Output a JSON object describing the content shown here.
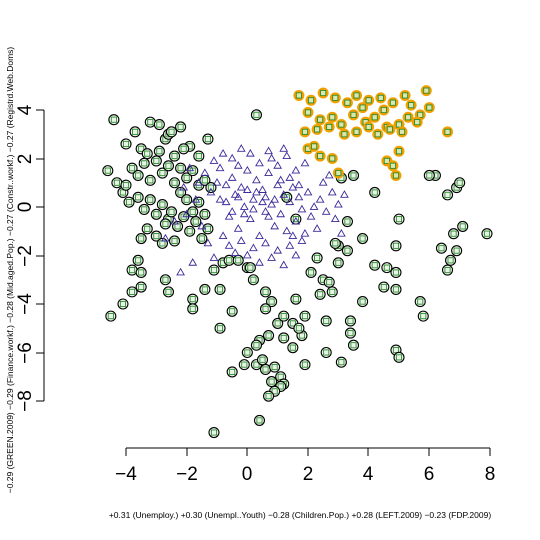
{
  "chart_data": {
    "type": "scatter",
    "xlabel": "+0.31 (Unemploy.) +0.30 (Unempl..Youth) −0.28 (Children.Pop.) +0.28 (LEFT.2009) −0.23 (FDP.2009)",
    "ylabel": "−0.29 (GREEN.2009) −0.29 (Finance.workf.) −0.28 (Mid.aged.Pop.) −0.27 (Constr..workf.) −0.27 (Registrd.Web.Doms)",
    "xlim": [
      -4.8,
      8.3
    ],
    "ylim": [
      -9.7,
      5.5
    ],
    "xticks": [
      "−4",
      "−2",
      "0",
      "2",
      "4",
      "6",
      "8"
    ],
    "xtick_values": [
      -4,
      -2,
      0,
      2,
      4,
      6,
      8
    ],
    "yticks": [
      "−8",
      "−6",
      "−4",
      "−2",
      "0",
      "2",
      "4"
    ],
    "ytick_values": [
      -8,
      -6,
      -4,
      -2,
      0,
      2,
      4
    ],
    "grid": false,
    "legend": "none",
    "colors": {
      "green_outer": "#000000",
      "green_inner": "#2e8b2e",
      "green_fill": "#e8f4e8",
      "blue": "#3a2a9a",
      "orange": "#f0a000"
    },
    "series": [
      {
        "marker": "circle-with-square",
        "values": [
          [
            -4.4,
            3.6
          ],
          [
            -4.0,
            2.6
          ],
          [
            -3.7,
            3.1
          ],
          [
            -3.5,
            2.4
          ],
          [
            -3.2,
            3.5
          ],
          [
            -2.9,
            3.4
          ],
          [
            -2.7,
            2.8
          ],
          [
            -2.6,
            3.0
          ],
          [
            -2.2,
            3.3
          ],
          [
            -2.5,
            3.1
          ],
          [
            -4.6,
            1.5
          ],
          [
            -4.3,
            1.0
          ],
          [
            -4.1,
            0.6
          ],
          [
            -4.0,
            0.9
          ],
          [
            -3.8,
            1.6
          ],
          [
            -3.6,
            1.3
          ],
          [
            -3.4,
            1.8
          ],
          [
            -3.2,
            1.1
          ],
          [
            -3.0,
            1.9
          ],
          [
            -2.8,
            1.4
          ],
          [
            -2.6,
            1.7
          ],
          [
            -2.4,
            1.0
          ],
          [
            -2.2,
            1.6
          ],
          [
            -2.0,
            1.2
          ],
          [
            -1.8,
            1.5
          ],
          [
            -1.6,
            0.9
          ],
          [
            -1.4,
            1.1
          ],
          [
            -1.2,
            0.8
          ],
          [
            -3.9,
            0.2
          ],
          [
            -3.6,
            0.4
          ],
          [
            -3.4,
            -0.1
          ],
          [
            -3.2,
            0.3
          ],
          [
            -3.0,
            -0.3
          ],
          [
            -2.8,
            0.1
          ],
          [
            -2.6,
            -0.5
          ],
          [
            -2.5,
            -0.2
          ],
          [
            -2.3,
            -0.8
          ],
          [
            -2.1,
            -0.4
          ],
          [
            -1.9,
            -1.0
          ],
          [
            -1.7,
            -0.6
          ],
          [
            -1.5,
            -1.3
          ],
          [
            -1.3,
            -0.9
          ],
          [
            -3.3,
            -0.9
          ],
          [
            -3.0,
            -1.2
          ],
          [
            -2.8,
            -1.5
          ],
          [
            -2.7,
            -0.7
          ],
          [
            -2.4,
            -1.4
          ],
          [
            -2.2,
            0.6
          ],
          [
            -2.0,
            0.3
          ],
          [
            -1.8,
            -0.2
          ],
          [
            -1.6,
            0.2
          ],
          [
            -1.4,
            -0.3
          ],
          [
            -3.5,
            -1.3
          ],
          [
            -3.6,
            -2.2
          ],
          [
            -3.5,
            -3.3
          ],
          [
            -3.8,
            -3.5
          ],
          [
            -4.1,
            -4.0
          ],
          [
            -4.5,
            -4.5
          ],
          [
            -3.8,
            -2.6
          ],
          [
            -3.5,
            -2.7
          ],
          [
            -2.7,
            -3.0
          ],
          [
            -2.6,
            -3.5
          ],
          [
            -1.8,
            -3.8
          ],
          [
            -1.8,
            -4.2
          ],
          [
            -1.4,
            -3.4
          ],
          [
            -0.9,
            -3.4
          ],
          [
            -0.9,
            -5.0
          ],
          [
            -0.5,
            -4.3
          ],
          [
            -1.1,
            -2.6
          ],
          [
            -0.8,
            -2.3
          ],
          [
            -0.6,
            -2.2
          ],
          [
            -0.3,
            -2.2
          ],
          [
            0.0,
            -2.5
          ],
          [
            0.2,
            -3.0
          ],
          [
            0.1,
            -2.5
          ],
          [
            0.6,
            -3.5
          ],
          [
            0.8,
            -3.9
          ],
          [
            0.6,
            -4.2
          ],
          [
            1.0,
            -4.8
          ],
          [
            1.2,
            -4.5
          ],
          [
            1.2,
            -5.4
          ],
          [
            0.7,
            -5.3
          ],
          [
            0.4,
            -5.5
          ],
          [
            0.3,
            -5.7
          ],
          [
            0.0,
            -6.0
          ],
          [
            -0.1,
            -6.5
          ],
          [
            0.3,
            -6.5
          ],
          [
            0.6,
            -6.7
          ],
          [
            0.9,
            -6.6
          ],
          [
            0.5,
            -6.3
          ],
          [
            0.8,
            -7.2
          ],
          [
            1.1,
            -7.0
          ],
          [
            1.2,
            -7.3
          ],
          [
            1.1,
            -7.4
          ],
          [
            0.9,
            -7.6
          ],
          [
            0.7,
            -7.8
          ],
          [
            -0.5,
            -6.8
          ],
          [
            0.4,
            -8.8
          ],
          [
            -1.1,
            -9.3
          ],
          [
            1.5,
            -4.8
          ],
          [
            1.6,
            -3.8
          ],
          [
            1.9,
            -4.5
          ],
          [
            1.8,
            -5.3
          ],
          [
            1.9,
            -6.5
          ],
          [
            1.5,
            -5.8
          ],
          [
            1.7,
            -5.0
          ],
          [
            2.5,
            -3.0
          ],
          [
            2.8,
            -3.5
          ],
          [
            2.6,
            -4.7
          ],
          [
            2.1,
            -2.7
          ],
          [
            2.3,
            -2.1
          ],
          [
            3.0,
            -2.3
          ],
          [
            3.4,
            -4.7
          ],
          [
            3.4,
            -5.2
          ],
          [
            3.5,
            -5.7
          ],
          [
            3.1,
            -6.4
          ],
          [
            2.6,
            -6.0
          ],
          [
            2.7,
            -3.1
          ],
          [
            3.8,
            -3.9
          ],
          [
            4.2,
            -2.4
          ],
          [
            4.5,
            -3.3
          ],
          [
            4.6,
            -2.5
          ],
          [
            4.9,
            -2.7
          ],
          [
            4.9,
            -3.4
          ],
          [
            5.7,
            -3.9
          ],
          [
            5.8,
            -4.5
          ],
          [
            4.9,
            -5.9
          ],
          [
            5.0,
            -6.2
          ],
          [
            2.4,
            -3.6
          ],
          [
            3.3,
            -1.8
          ],
          [
            3.8,
            -1.3
          ],
          [
            4.9,
            -1.6
          ],
          [
            5.0,
            -0.5
          ],
          [
            3.0,
            -1.6
          ],
          [
            4.2,
            0.6
          ],
          [
            3.1,
            1.2
          ],
          [
            3.5,
            1.3
          ],
          [
            3.3,
            -0.6
          ],
          [
            6.2,
            1.3
          ],
          [
            6.0,
            1.3
          ],
          [
            6.9,
            0.8
          ],
          [
            7.0,
            1.0
          ],
          [
            6.6,
            0.5
          ],
          [
            7.1,
            -0.8
          ],
          [
            7.9,
            -1.1
          ],
          [
            6.8,
            -1.1
          ],
          [
            6.4,
            -1.7
          ],
          [
            6.9,
            -1.8
          ],
          [
            6.7,
            -2.2
          ],
          [
            6.6,
            -2.6
          ],
          [
            0.3,
            3.8
          ],
          [
            -1.3,
            2.8
          ],
          [
            -1.6,
            2.1
          ],
          [
            -1.9,
            2.5
          ],
          [
            -2.9,
            2.3
          ],
          [
            -3.3,
            2.2
          ],
          [
            -2.4,
            2.1
          ],
          [
            -2.1,
            2.4
          ],
          [
            2.9,
            -1.5
          ],
          [
            1.3,
            0.4
          ],
          [
            1.6,
            -0.5
          ]
        ]
      },
      {
        "marker": "triangle",
        "values": [
          [
            -1.2,
            0.6
          ],
          [
            -1.0,
            1.0
          ],
          [
            -0.9,
            1.6
          ],
          [
            -0.7,
            0.2
          ],
          [
            -0.6,
            -0.4
          ],
          [
            -0.5,
            1.2
          ],
          [
            -0.4,
            0.5
          ],
          [
            -0.3,
            -0.9
          ],
          [
            -0.2,
            0.8
          ],
          [
            -0.1,
            0.0
          ],
          [
            0.0,
            1.5
          ],
          [
            0.1,
            -0.5
          ],
          [
            0.2,
            0.3
          ],
          [
            0.3,
            1.1
          ],
          [
            0.4,
            -1.2
          ],
          [
            0.5,
            0.7
          ],
          [
            0.6,
            -0.2
          ],
          [
            0.7,
            1.4
          ],
          [
            0.8,
            0.1
          ],
          [
            0.9,
            -0.8
          ],
          [
            1.0,
            0.9
          ],
          [
            1.1,
            -0.3
          ],
          [
            1.2,
            0.5
          ],
          [
            1.3,
            -1.0
          ],
          [
            1.4,
            0.2
          ],
          [
            1.5,
            0.8
          ],
          [
            1.6,
            -0.6
          ],
          [
            1.7,
            0.4
          ],
          [
            1.8,
            -0.1
          ],
          [
            1.9,
            -1.1
          ],
          [
            2.0,
            0.6
          ],
          [
            2.1,
            -0.4
          ],
          [
            2.2,
            0.0
          ],
          [
            2.3,
            -0.9
          ],
          [
            2.4,
            0.3
          ],
          [
            2.6,
            -0.2
          ],
          [
            2.8,
            0.6
          ],
          [
            3.0,
            0.1
          ],
          [
            3.2,
            0.5
          ],
          [
            -0.8,
            -1.2
          ],
          [
            -0.6,
            -1.6
          ],
          [
            -0.4,
            -1.9
          ],
          [
            -0.2,
            -1.4
          ],
          [
            0.0,
            -2.0
          ],
          [
            0.2,
            -1.7
          ],
          [
            0.4,
            -2.3
          ],
          [
            0.6,
            -1.5
          ],
          [
            0.8,
            -2.1
          ],
          [
            1.0,
            -1.8
          ],
          [
            1.2,
            -2.4
          ],
          [
            1.4,
            -1.6
          ],
          [
            1.6,
            -2.0
          ],
          [
            1.8,
            -1.4
          ],
          [
            -1.5,
            -0.8
          ],
          [
            -1.3,
            -1.5
          ],
          [
            -1.1,
            -2.1
          ],
          [
            -1.8,
            -2.3
          ],
          [
            -2.2,
            -2.7
          ],
          [
            -2.7,
            -1.3
          ],
          [
            -2.0,
            -0.3
          ],
          [
            -1.7,
            0.3
          ],
          [
            -1.4,
            1.4
          ],
          [
            -1.1,
            1.9
          ],
          [
            -0.8,
            2.2
          ],
          [
            -0.5,
            2.0
          ],
          [
            -0.2,
            2.4
          ],
          [
            0.1,
            2.2
          ],
          [
            0.4,
            1.8
          ],
          [
            0.7,
            2.3
          ],
          [
            1.0,
            1.7
          ],
          [
            1.3,
            2.1
          ],
          [
            1.6,
            1.5
          ],
          [
            1.9,
            1.8
          ],
          [
            -0.3,
            0.4
          ],
          [
            0.2,
            -0.1
          ],
          [
            0.5,
            0.2
          ],
          [
            -0.1,
            -0.3
          ],
          [
            0.3,
            0.6
          ],
          [
            0.6,
            0.4
          ],
          [
            0.9,
            0.3
          ],
          [
            -0.5,
            -0.2
          ],
          [
            0.0,
            0.7
          ],
          [
            0.7,
            -0.4
          ],
          [
            1.1,
            1.1
          ],
          [
            -0.9,
            0.3
          ],
          [
            -0.7,
            0.9
          ],
          [
            -0.3,
            1.7
          ],
          [
            1.4,
            1.2
          ],
          [
            1.7,
            0.9
          ],
          [
            2.5,
            1.0
          ],
          [
            2.7,
            1.3
          ],
          [
            2.9,
            -0.5
          ],
          [
            3.1,
            -1.1
          ],
          [
            1.2,
            2.4
          ],
          [
            -1.6,
            1.0
          ],
          [
            -2.4,
            -0.6
          ],
          [
            -2.1,
            0.8
          ],
          [
            -1.9,
            1.6
          ],
          [
            0.8,
            2.0
          ],
          [
            1.5,
            -1.2
          ]
        ]
      },
      {
        "marker": "orange-circle-with-square",
        "values": [
          [
            1.7,
            4.6
          ],
          [
            2.1,
            4.4
          ],
          [
            2.5,
            4.7
          ],
          [
            2.9,
            4.5
          ],
          [
            3.3,
            4.3
          ],
          [
            3.6,
            4.6
          ],
          [
            4.0,
            4.4
          ],
          [
            4.4,
            4.5
          ],
          [
            4.8,
            4.3
          ],
          [
            5.2,
            4.6
          ],
          [
            5.9,
            4.8
          ],
          [
            6.0,
            4.1
          ],
          [
            5.7,
            3.8
          ],
          [
            2.0,
            3.9
          ],
          [
            2.4,
            3.6
          ],
          [
            2.8,
            3.7
          ],
          [
            3.1,
            3.4
          ],
          [
            3.5,
            3.8
          ],
          [
            3.9,
            3.5
          ],
          [
            4.2,
            3.7
          ],
          [
            4.6,
            3.3
          ],
          [
            5.0,
            3.4
          ],
          [
            5.3,
            3.7
          ],
          [
            5.6,
            3.5
          ],
          [
            1.9,
            3.1
          ],
          [
            2.3,
            3.2
          ],
          [
            2.7,
            3.3
          ],
          [
            3.2,
            3.0
          ],
          [
            3.6,
            3.1
          ],
          [
            4.0,
            3.3
          ],
          [
            4.3,
            3.0
          ],
          [
            4.7,
            3.2
          ],
          [
            5.1,
            3.1
          ],
          [
            6.6,
            3.1
          ],
          [
            2.0,
            2.4
          ],
          [
            2.4,
            2.1
          ],
          [
            2.8,
            2.0
          ],
          [
            3.0,
            1.4
          ],
          [
            4.6,
            1.9
          ],
          [
            5.0,
            2.3
          ],
          [
            4.8,
            1.7
          ],
          [
            4.9,
            1.3
          ],
          [
            2.2,
            2.5
          ],
          [
            3.8,
            4.1
          ],
          [
            4.5,
            4.0
          ],
          [
            5.4,
            4.2
          ]
        ]
      }
    ]
  }
}
